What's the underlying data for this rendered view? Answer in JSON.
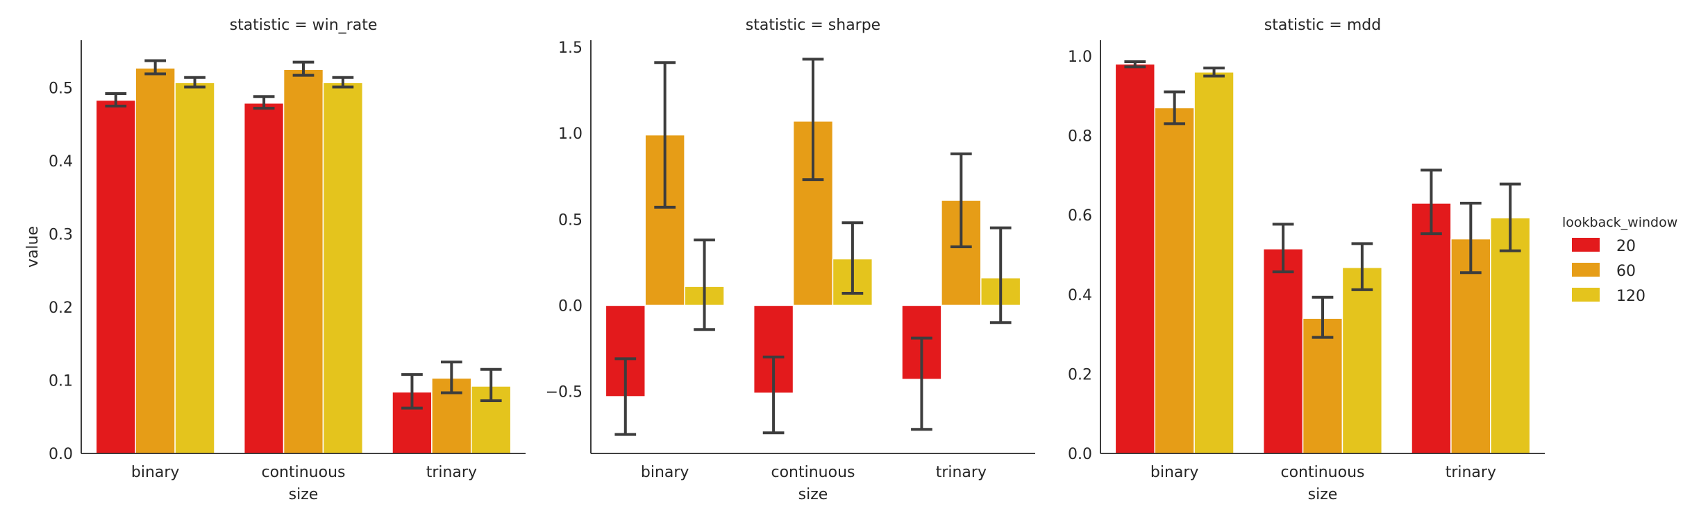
{
  "chart_data": [
    {
      "type": "bar",
      "title": "statistic = win_rate",
      "xlabel": "size",
      "ylabel": "value",
      "categories": [
        "binary",
        "continuous",
        "trinary"
      ],
      "ylim": [
        0,
        0.565
      ],
      "yticks": [
        0.0,
        0.1,
        0.2,
        0.3,
        0.4,
        0.5
      ],
      "ytick_labels": [
        "0.0",
        "0.1",
        "0.2",
        "0.3",
        "0.4",
        "0.5"
      ],
      "series": [
        {
          "name": "20",
          "values": [
            0.483,
            0.479,
            0.084
          ],
          "ci_low": [
            0.475,
            0.472,
            0.062
          ],
          "ci_high": [
            0.492,
            0.488,
            0.108
          ]
        },
        {
          "name": "60",
          "values": [
            0.527,
            0.525,
            0.103
          ],
          "ci_low": [
            0.519,
            0.517,
            0.083
          ],
          "ci_high": [
            0.537,
            0.535,
            0.125
          ]
        },
        {
          "name": "120",
          "values": [
            0.507,
            0.507,
            0.092
          ],
          "ci_low": [
            0.501,
            0.501,
            0.072
          ],
          "ci_high": [
            0.514,
            0.514,
            0.115
          ]
        }
      ]
    },
    {
      "type": "bar",
      "title": "statistic = sharpe",
      "xlabel": "size",
      "ylabel": "",
      "categories": [
        "binary",
        "continuous",
        "trinary"
      ],
      "ylim": [
        -0.86,
        1.54
      ],
      "yticks": [
        -0.5,
        0.0,
        0.5,
        1.0,
        1.5
      ],
      "ytick_labels": [
        "−0.5",
        "0.0",
        "0.5",
        "1.0",
        "1.5"
      ],
      "series": [
        {
          "name": "20",
          "values": [
            -0.53,
            -0.51,
            -0.43
          ],
          "ci_low": [
            -0.75,
            -0.74,
            -0.72
          ],
          "ci_high": [
            -0.31,
            -0.3,
            -0.19
          ]
        },
        {
          "name": "60",
          "values": [
            0.99,
            1.07,
            0.61
          ],
          "ci_low": [
            0.57,
            0.73,
            0.34
          ],
          "ci_high": [
            1.41,
            1.43,
            0.88
          ]
        },
        {
          "name": "120",
          "values": [
            0.11,
            0.27,
            0.16
          ],
          "ci_low": [
            -0.14,
            0.07,
            -0.1
          ],
          "ci_high": [
            0.38,
            0.48,
            0.45
          ]
        }
      ]
    },
    {
      "type": "bar",
      "title": "statistic = mdd",
      "xlabel": "size",
      "ylabel": "",
      "categories": [
        "binary",
        "continuous",
        "trinary"
      ],
      "ylim": [
        0,
        1.04
      ],
      "yticks": [
        0.0,
        0.2,
        0.4,
        0.6,
        0.8,
        1.0
      ],
      "ytick_labels": [
        "0.0",
        "0.2",
        "0.4",
        "0.6",
        "0.8",
        "1.0"
      ],
      "series": [
        {
          "name": "20",
          "values": [
            0.98,
            0.515,
            0.63
          ],
          "ci_low": [
            0.973,
            0.457,
            0.553
          ],
          "ci_high": [
            0.986,
            0.577,
            0.713
          ]
        },
        {
          "name": "60",
          "values": [
            0.87,
            0.34,
            0.54
          ],
          "ci_low": [
            0.83,
            0.292,
            0.455
          ],
          "ci_high": [
            0.91,
            0.393,
            0.63
          ]
        },
        {
          "name": "120",
          "values": [
            0.96,
            0.468,
            0.593
          ],
          "ci_low": [
            0.95,
            0.412,
            0.51
          ],
          "ci_high": [
            0.97,
            0.528,
            0.678
          ]
        }
      ]
    }
  ],
  "legend": {
    "title": "lookback_window",
    "placement": "right",
    "items": [
      {
        "label": "20",
        "color": "#e31a1c"
      },
      {
        "label": "60",
        "color": "#e69d17"
      },
      {
        "label": "120",
        "color": "#e4c41d"
      }
    ]
  },
  "colors": {
    "errorbar": "#3d3d3d",
    "axis": "#262626"
  }
}
